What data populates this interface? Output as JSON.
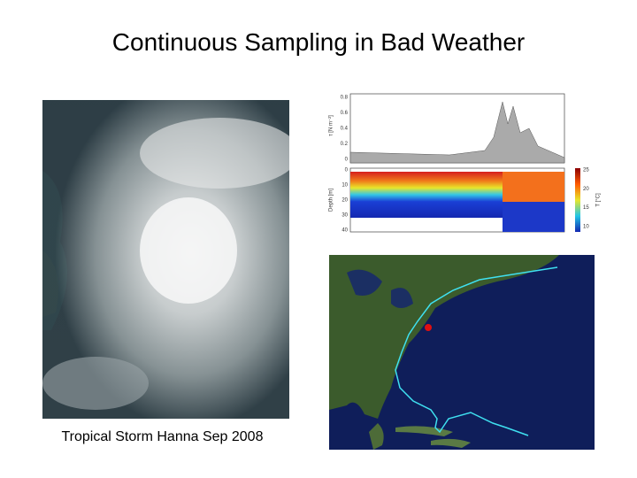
{
  "slide": {
    "title": "Continuous Sampling in Bad Weather",
    "caption": "Tropical Storm Hanna Sep 2008",
    "figure": {
      "top_axis_label": "τ [N m⁻²]",
      "top_ticks": [
        "0.8",
        "0.6",
        "0.4",
        "0.2",
        "0"
      ],
      "depth_axis_label": "Depth [m]",
      "depth_ticks": [
        "0",
        "10",
        "20",
        "30",
        "40"
      ],
      "colorbar_label": "T [°C]",
      "colorbar_ticks": [
        "25",
        "20",
        "15",
        "10"
      ]
    }
  }
}
